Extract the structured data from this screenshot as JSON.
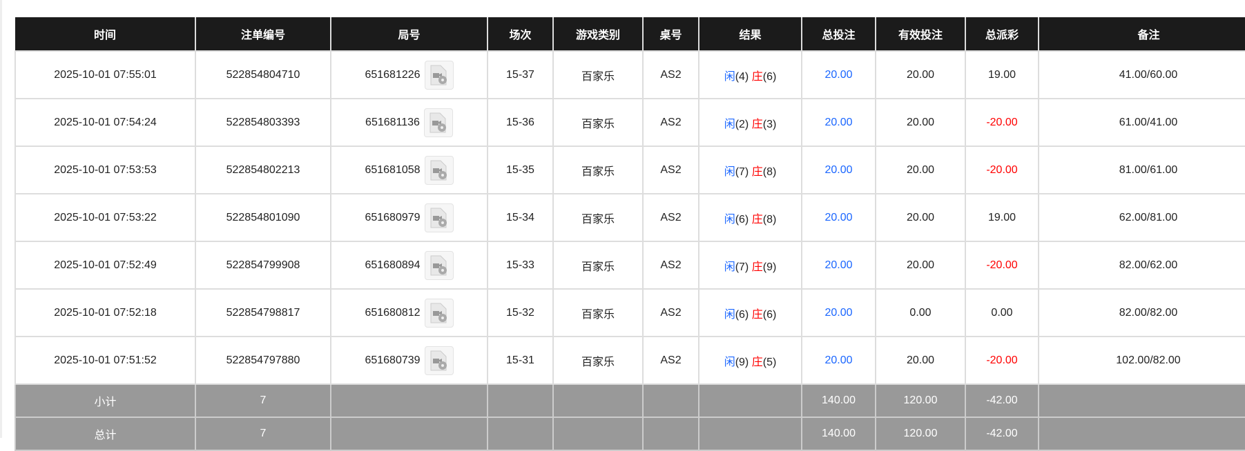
{
  "colors": {
    "header_bg": "#1b1b1b",
    "summary_bg": "#999999",
    "blue": "#1a66ff",
    "red": "#ff0000"
  },
  "headers": [
    "时间",
    "注单编号",
    "局号",
    "场次",
    "游戏类别",
    "桌号",
    "结果",
    "总投注",
    "有效投注",
    "总派彩",
    "备注"
  ],
  "rows": [
    {
      "time": "2025-10-01 07:55:01",
      "bet_id": "522854804710",
      "round": "651681226",
      "session": "15-37",
      "game": "百家乐",
      "table": "AS2",
      "player_label": "闲",
      "player": "(4)",
      "banker_label": "庄",
      "banker": "(6)",
      "total_bet": "20.00",
      "valid_bet": "20.00",
      "payout": "19.00",
      "payout_neg": false,
      "note": "41.00/60.00"
    },
    {
      "time": "2025-10-01 07:54:24",
      "bet_id": "522854803393",
      "round": "651681136",
      "session": "15-36",
      "game": "百家乐",
      "table": "AS2",
      "player_label": "闲",
      "player": "(2)",
      "banker_label": "庄",
      "banker": "(3)",
      "total_bet": "20.00",
      "valid_bet": "20.00",
      "payout": "-20.00",
      "payout_neg": true,
      "note": "61.00/41.00"
    },
    {
      "time": "2025-10-01 07:53:53",
      "bet_id": "522854802213",
      "round": "651681058",
      "session": "15-35",
      "game": "百家乐",
      "table": "AS2",
      "player_label": "闲",
      "player": "(7)",
      "banker_label": "庄",
      "banker": "(8)",
      "total_bet": "20.00",
      "valid_bet": "20.00",
      "payout": "-20.00",
      "payout_neg": true,
      "note": "81.00/61.00"
    },
    {
      "time": "2025-10-01 07:53:22",
      "bet_id": "522854801090",
      "round": "651680979",
      "session": "15-34",
      "game": "百家乐",
      "table": "AS2",
      "player_label": "闲",
      "player": "(6)",
      "banker_label": "庄",
      "banker": "(8)",
      "total_bet": "20.00",
      "valid_bet": "20.00",
      "payout": "19.00",
      "payout_neg": false,
      "note": "62.00/81.00"
    },
    {
      "time": "2025-10-01 07:52:49",
      "bet_id": "522854799908",
      "round": "651680894",
      "session": "15-33",
      "game": "百家乐",
      "table": "AS2",
      "player_label": "闲",
      "player": "(7)",
      "banker_label": "庄",
      "banker": "(9)",
      "total_bet": "20.00",
      "valid_bet": "20.00",
      "payout": "-20.00",
      "payout_neg": true,
      "note": "82.00/62.00"
    },
    {
      "time": "2025-10-01 07:52:18",
      "bet_id": "522854798817",
      "round": "651680812",
      "session": "15-32",
      "game": "百家乐",
      "table": "AS2",
      "player_label": "闲",
      "player": "(6)",
      "banker_label": "庄",
      "banker": "(6)",
      "total_bet": "20.00",
      "valid_bet": "0.00",
      "payout": "0.00",
      "payout_neg": false,
      "note": "82.00/82.00"
    },
    {
      "time": "2025-10-01 07:51:52",
      "bet_id": "522854797880",
      "round": "651680739",
      "session": "15-31",
      "game": "百家乐",
      "table": "AS2",
      "player_label": "闲",
      "player": "(9)",
      "banker_label": "庄",
      "banker": "(5)",
      "total_bet": "20.00",
      "valid_bet": "20.00",
      "payout": "-20.00",
      "payout_neg": true,
      "note": "102.00/82.00"
    }
  ],
  "summary": [
    {
      "label": "小计",
      "count": "7",
      "total_bet": "140.00",
      "valid_bet": "120.00",
      "payout": "-42.00"
    },
    {
      "label": "总计",
      "count": "7",
      "total_bet": "140.00",
      "valid_bet": "120.00",
      "payout": "-42.00"
    }
  ]
}
